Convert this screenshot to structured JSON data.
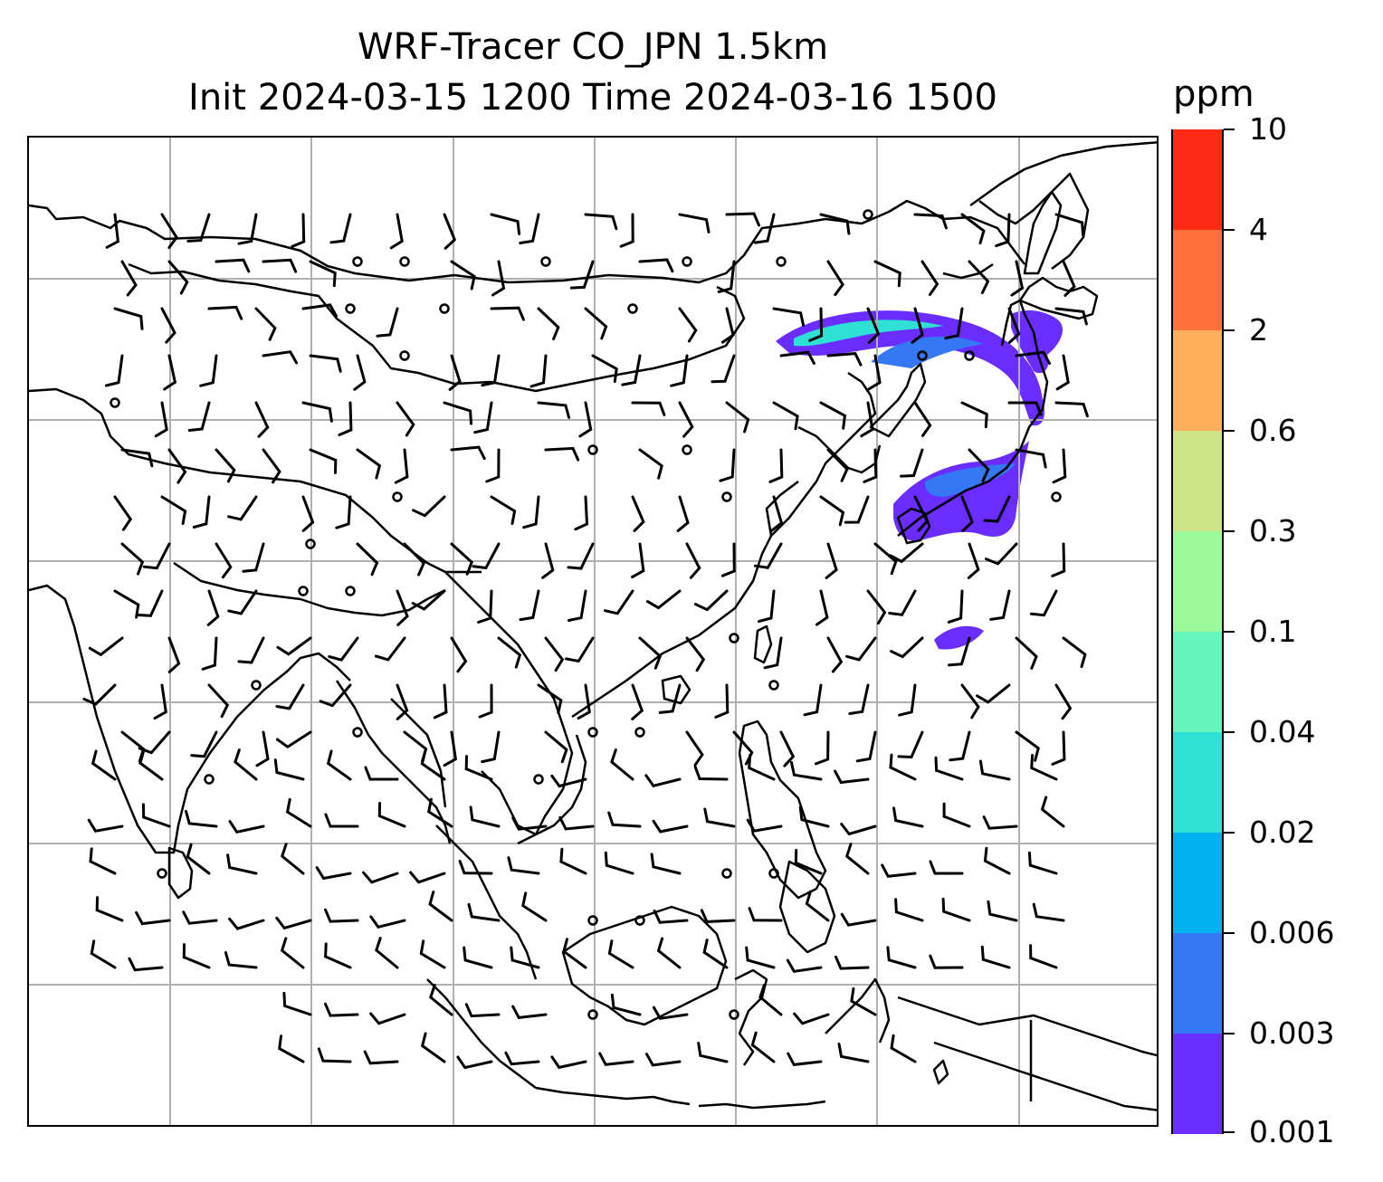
{
  "title": {
    "line1": "WRF-Tracer CO_JPN 1.5km",
    "line2": "Init 2024-03-15 1200 Time 2024-03-16 1500"
  },
  "colorbar": {
    "unit": "ppm",
    "levels": [
      "0.001",
      "0.003",
      "0.006",
      "0.02",
      "0.04",
      "0.1",
      "0.3",
      "0.6",
      "2",
      "4",
      "10"
    ],
    "colors": [
      "#6a2cff",
      "#3478f6",
      "#00b3ee",
      "#2fe0d5",
      "#66f7bf",
      "#9bf99a",
      "#cee487",
      "#ffb05a",
      "#ff703a",
      "#ff2a14"
    ]
  },
  "map": {
    "coastline_color": "#000000",
    "gridline_color": "#b0b0b0",
    "barb_color": "#000000",
    "grid": true
  }
}
